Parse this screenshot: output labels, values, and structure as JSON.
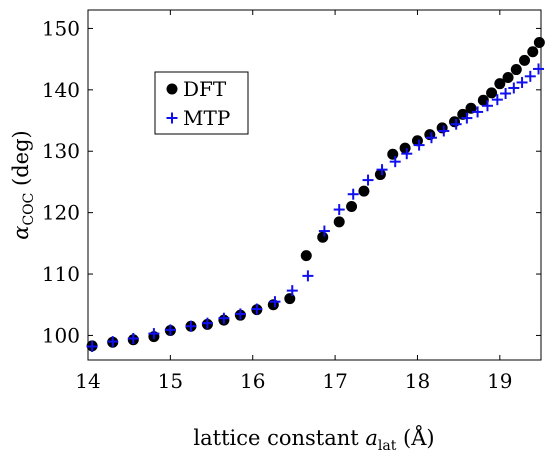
{
  "chart_data": {
    "type": "scatter",
    "xlabel_main": "lattice constant ",
    "xlabel_var": "a",
    "xlabel_sub": "lat",
    "xlabel_unit": " (Å)",
    "ylabel_var": "α",
    "ylabel_sub": "COC",
    "ylabel_unit": " (deg)",
    "xlim": [
      14,
      19.5
    ],
    "ylim": [
      96,
      153
    ],
    "x_ticks": [
      14,
      15,
      16,
      17,
      18,
      19
    ],
    "x_tick_labels": [
      "14",
      "15",
      "16",
      "17",
      "18",
      "19"
    ],
    "y_ticks": [
      100,
      110,
      120,
      130,
      140,
      150
    ],
    "y_tick_labels": [
      "100",
      "110",
      "120",
      "130",
      "140",
      "150"
    ],
    "grid": false,
    "legend_position": "top-left",
    "series": [
      {
        "name": "DFT",
        "marker": "circle",
        "color": "#000000",
        "x": [
          14.05,
          14.3,
          14.55,
          14.8,
          15.0,
          15.25,
          15.45,
          15.65,
          15.85,
          16.05,
          16.25,
          16.45,
          16.65,
          16.85,
          17.05,
          17.2,
          17.35,
          17.55,
          17.7,
          17.85,
          18.0,
          18.15,
          18.3,
          18.45,
          18.55,
          18.65,
          18.8,
          18.9,
          19.0,
          19.1,
          19.2,
          19.3,
          19.4,
          19.48
        ],
        "y": [
          98.3,
          98.9,
          99.3,
          99.8,
          100.8,
          101.5,
          101.8,
          102.5,
          103.3,
          104.2,
          105.0,
          106.0,
          113.0,
          116.0,
          118.5,
          121.0,
          123.5,
          126.2,
          129.5,
          130.5,
          131.7,
          132.7,
          133.8,
          134.8,
          136.0,
          137.0,
          138.3,
          139.5,
          141.0,
          142.0,
          143.3,
          144.8,
          146.2,
          147.7
        ]
      },
      {
        "name": "MTP",
        "marker": "plus",
        "color": "#1010ee",
        "x": [
          14.05,
          14.3,
          14.55,
          14.8,
          15.0,
          15.25,
          15.45,
          15.65,
          15.85,
          16.05,
          16.27,
          16.48,
          16.67,
          16.87,
          17.05,
          17.22,
          17.4,
          17.57,
          17.73,
          17.87,
          18.02,
          18.17,
          18.32,
          18.47,
          18.6,
          18.73,
          18.85,
          18.97,
          19.07,
          19.17,
          19.27,
          19.37,
          19.47
        ],
        "y": [
          98.2,
          99.0,
          99.5,
          100.3,
          100.9,
          101.5,
          102.0,
          102.8,
          103.5,
          104.3,
          105.5,
          107.3,
          109.7,
          117.0,
          120.5,
          123.0,
          125.3,
          127.0,
          128.3,
          129.6,
          131.0,
          132.2,
          133.3,
          134.4,
          135.4,
          136.4,
          137.4,
          138.4,
          139.4,
          140.3,
          141.2,
          142.2,
          143.4
        ]
      }
    ]
  },
  "colors": {
    "dft": "#000000",
    "mtp": "#1010ee"
  }
}
